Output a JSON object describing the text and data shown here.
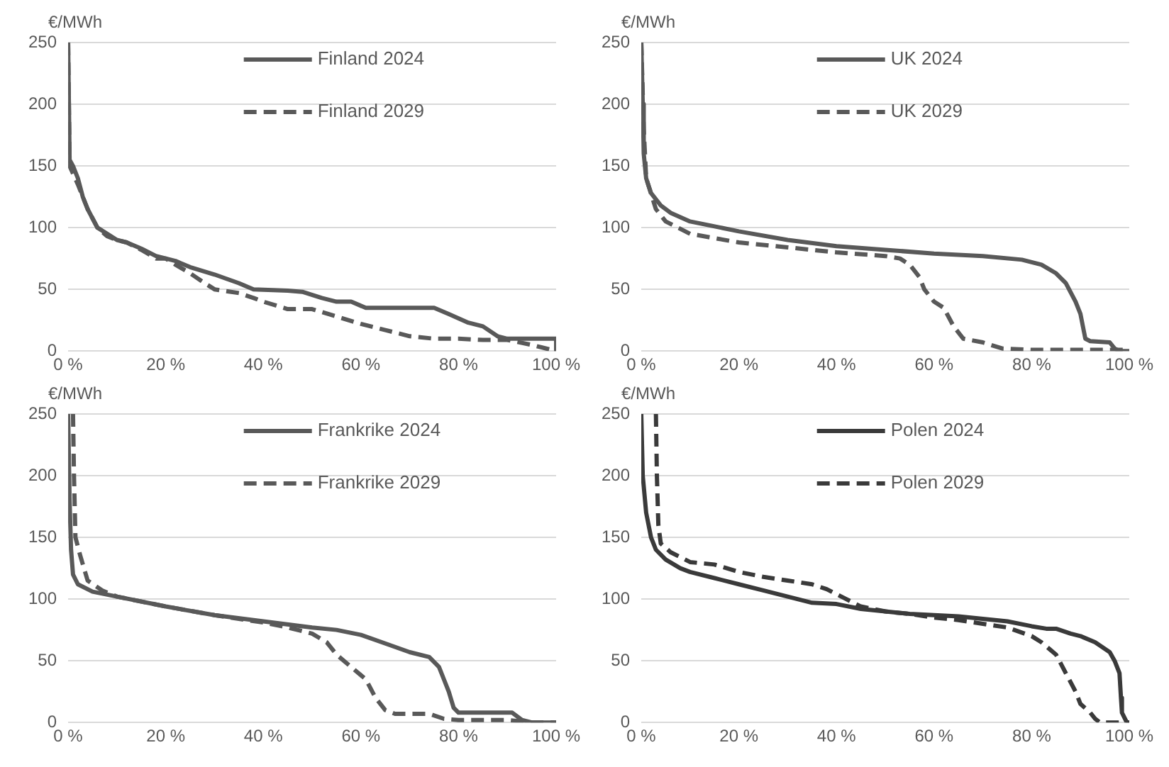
{
  "chart_data": [
    {
      "type": "line",
      "ylabel": "€/MWh",
      "xlim": [
        0,
        100
      ],
      "ylim": [
        0,
        250
      ],
      "grid": "y",
      "legend": "top right",
      "marker": "none",
      "xticks": [
        {
          "value": 0,
          "label": "0 %"
        },
        {
          "value": 20,
          "label": "20 %"
        },
        {
          "value": 40,
          "label": "40 %"
        },
        {
          "value": 60,
          "label": "60 %"
        },
        {
          "value": 80,
          "label": "80 %"
        },
        {
          "value": 100,
          "label": "100 %"
        }
      ],
      "yticks": [
        0,
        50,
        100,
        150,
        200,
        250
      ],
      "series": [
        {
          "name": "Finland 2024",
          "color": "#595959",
          "line_style": "solid",
          "x": [
            0,
            0.3,
            1,
            2,
            3,
            4,
            6,
            8,
            10,
            12,
            15,
            18,
            20,
            22,
            25,
            30,
            35,
            38,
            45,
            48,
            52,
            55,
            58,
            61,
            70,
            75,
            78,
            82,
            85,
            88,
            90,
            95,
            100,
            100
          ],
          "values": [
            250,
            155,
            150,
            140,
            125,
            115,
            100,
            95,
            90,
            88,
            83,
            77,
            75,
            73,
            68,
            62,
            55,
            50,
            49,
            48,
            43,
            40,
            40,
            35,
            35,
            35,
            30,
            23,
            20,
            12,
            10,
            10,
            10,
            0
          ]
        },
        {
          "name": "Finland 2029",
          "color": "#595959",
          "line_style": "dashed",
          "x": [
            0,
            0.3,
            2,
            4,
            6,
            8,
            10,
            12,
            15,
            18,
            20,
            22,
            25,
            28,
            30,
            35,
            38,
            40,
            45,
            50,
            55,
            60,
            65,
            70,
            75,
            80,
            85,
            90,
            95,
            100
          ],
          "values": [
            250,
            150,
            135,
            115,
            100,
            93,
            90,
            88,
            82,
            75,
            75,
            70,
            63,
            55,
            50,
            47,
            43,
            40,
            34,
            34,
            28,
            22,
            17,
            12,
            10,
            10,
            9,
            9,
            5,
            0
          ]
        }
      ]
    },
    {
      "type": "line",
      "ylabel": "€/MWh",
      "xlim": [
        0,
        100
      ],
      "ylim": [
        0,
        250
      ],
      "grid": "y",
      "legend": "top right",
      "marker": "none",
      "xticks": [
        {
          "value": 0,
          "label": "0 %"
        },
        {
          "value": 20,
          "label": "20 %"
        },
        {
          "value": 40,
          "label": "40 %"
        },
        {
          "value": 60,
          "label": "60 %"
        },
        {
          "value": 80,
          "label": "80 %"
        },
        {
          "value": 100,
          "label": "100 %"
        }
      ],
      "yticks": [
        0,
        50,
        100,
        150,
        200,
        250
      ],
      "series": [
        {
          "name": "UK 2024",
          "color": "#595959",
          "line_style": "solid",
          "x": [
            0,
            0.3,
            0.5,
            1,
            2,
            4,
            6,
            10,
            20,
            30,
            40,
            50,
            60,
            70,
            78,
            82,
            85,
            87,
            89,
            90,
            91,
            92,
            96,
            97,
            98,
            100
          ],
          "values": [
            250,
            200,
            160,
            140,
            128,
            118,
            112,
            105,
            97,
            90,
            85,
            82,
            79,
            77,
            74,
            70,
            63,
            55,
            40,
            30,
            10,
            8,
            7,
            2,
            0,
            0
          ]
        },
        {
          "name": "UK 2029",
          "color": "#595959",
          "line_style": "dashed",
          "x": [
            0,
            0.5,
            1,
            3,
            5,
            10,
            20,
            30,
            40,
            50,
            53,
            55,
            57,
            58,
            60,
            62,
            64,
            66,
            70,
            74,
            80,
            100
          ],
          "values": [
            250,
            180,
            140,
            115,
            105,
            95,
            88,
            84,
            80,
            77,
            75,
            70,
            60,
            50,
            40,
            35,
            20,
            10,
            7,
            2,
            1,
            1
          ]
        }
      ]
    },
    {
      "type": "line",
      "ylabel": "€/MWh",
      "xlim": [
        0,
        100
      ],
      "ylim": [
        0,
        250
      ],
      "grid": "y",
      "legend": "top right",
      "marker": "none",
      "xticks": [
        {
          "value": 0,
          "label": "0 %"
        },
        {
          "value": 20,
          "label": "20 %"
        },
        {
          "value": 40,
          "label": "40 %"
        },
        {
          "value": 60,
          "label": "60 %"
        },
        {
          "value": 80,
          "label": "80 %"
        },
        {
          "value": 100,
          "label": "100 %"
        }
      ],
      "yticks": [
        0,
        50,
        100,
        150,
        200,
        250
      ],
      "series": [
        {
          "name": "Frankrike 2024",
          "color": "#595959",
          "line_style": "solid",
          "x": [
            0,
            0.3,
            0.6,
            1,
            2,
            5,
            10,
            20,
            30,
            40,
            50,
            55,
            60,
            65,
            70,
            74,
            76,
            77,
            78,
            79,
            80,
            85,
            91,
            93,
            95,
            100
          ],
          "values": [
            250,
            180,
            140,
            120,
            112,
            106,
            102,
            94,
            87,
            82,
            77,
            75,
            71,
            64,
            57,
            53,
            45,
            35,
            25,
            12,
            8,
            8,
            8,
            2,
            0,
            0
          ]
        },
        {
          "name": "Frankrike 2029",
          "color": "#595959",
          "line_style": "dashed",
          "x": [
            1,
            1.2,
            1.5,
            2.5,
            4,
            7,
            10,
            20,
            30,
            40,
            45,
            50,
            53,
            55,
            58,
            61,
            63,
            65,
            67,
            74,
            77,
            80,
            90,
            95,
            100
          ],
          "values": [
            250,
            200,
            150,
            135,
            115,
            107,
            102,
            94,
            87,
            81,
            77,
            72,
            65,
            55,
            45,
            35,
            20,
            10,
            7,
            7,
            3,
            2,
            2,
            0,
            0
          ]
        }
      ]
    },
    {
      "type": "line",
      "ylabel": "€/MWh",
      "xlim": [
        0,
        100
      ],
      "ylim": [
        0,
        250
      ],
      "grid": "y",
      "legend": "top right",
      "marker": "none",
      "xticks": [
        {
          "value": 0,
          "label": "0 %"
        },
        {
          "value": 20,
          "label": "20 %"
        },
        {
          "value": 40,
          "label": "40 %"
        },
        {
          "value": 60,
          "label": "60 %"
        },
        {
          "value": 80,
          "label": "80 %"
        },
        {
          "value": 100,
          "label": "100 %"
        }
      ],
      "yticks": [
        0,
        50,
        100,
        150,
        200,
        250
      ],
      "series": [
        {
          "name": "Polen 2024",
          "color": "#3a3a3a",
          "line_style": "solid",
          "x": [
            0,
            0.3,
            1,
            2,
            3,
            5,
            8,
            10,
            15,
            20,
            25,
            30,
            35,
            40,
            45,
            50,
            55,
            60,
            65,
            70,
            75,
            80,
            83,
            85,
            88,
            90,
            93,
            96,
            97,
            98,
            98.3,
            98.5,
            99.5,
            100
          ],
          "values": [
            250,
            200,
            170,
            150,
            140,
            132,
            125,
            122,
            117,
            112,
            107,
            102,
            97,
            96,
            92,
            90,
            88,
            87,
            86,
            84,
            82,
            78,
            76,
            76,
            72,
            70,
            65,
            57,
            50,
            40,
            20,
            8,
            0,
            0
          ]
        },
        {
          "name": "Polen 2029",
          "color": "#3a3a3a",
          "line_style": "dashed",
          "x": [
            3,
            3.2,
            3.5,
            4,
            6,
            10,
            15,
            20,
            25,
            30,
            35,
            38,
            42,
            45,
            50,
            55,
            60,
            65,
            70,
            75,
            80,
            82,
            85,
            87,
            89,
            90,
            92,
            93,
            94,
            100
          ],
          "values": [
            250,
            200,
            160,
            145,
            138,
            130,
            128,
            122,
            118,
            115,
            112,
            108,
            100,
            94,
            90,
            88,
            85,
            83,
            80,
            77,
            70,
            65,
            55,
            40,
            25,
            15,
            8,
            3,
            0,
            0
          ]
        }
      ]
    }
  ]
}
